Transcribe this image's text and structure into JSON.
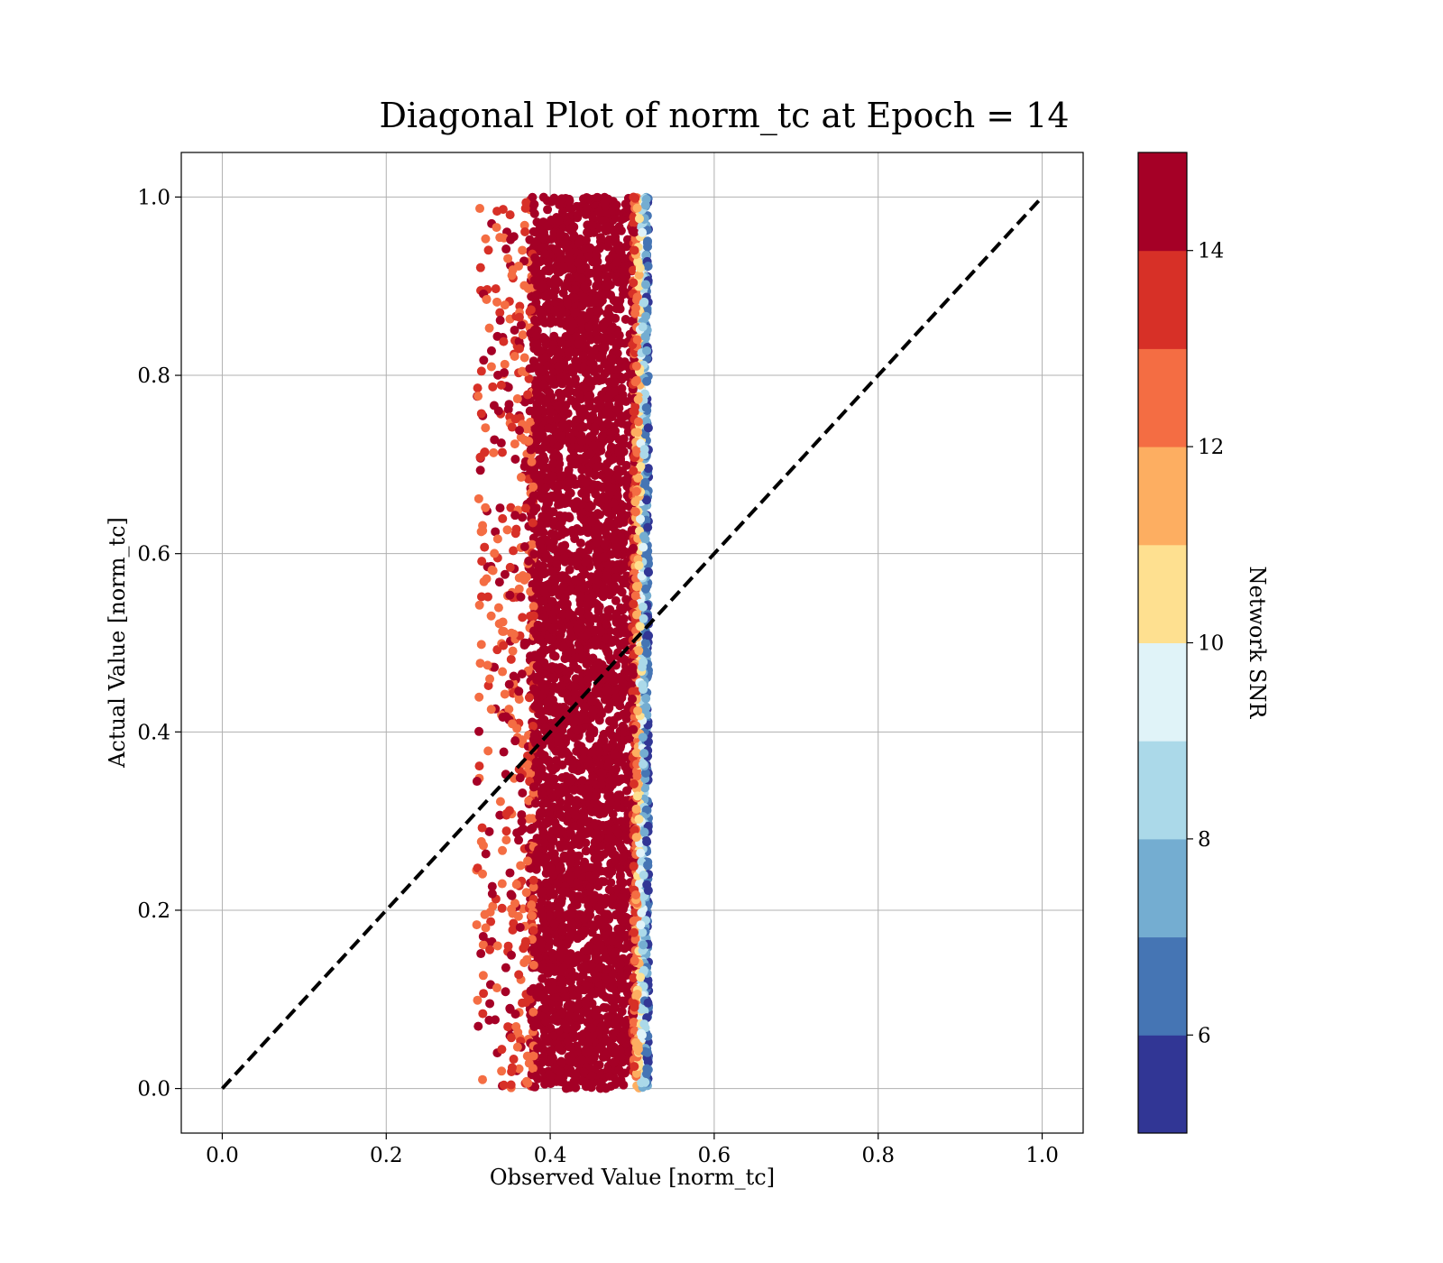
{
  "chart_data": {
    "type": "scatter",
    "title": "Diagonal Plot of norm_tc at Epoch = 14",
    "xlabel": "Observed Value [norm_tc]",
    "ylabel": "Actual Value [norm_tc]",
    "xlim": [
      -0.05,
      1.05
    ],
    "ylim": [
      -0.05,
      1.05
    ],
    "xticks": [
      "0.0",
      "0.2",
      "0.4",
      "0.6",
      "0.8",
      "1.0"
    ],
    "yticks": [
      "0.0",
      "0.2",
      "0.4",
      "0.6",
      "0.8",
      "1.0"
    ],
    "grid": true,
    "reference_line": {
      "style": "dashed",
      "color": "#000000",
      "x": [
        0.0,
        1.0
      ],
      "y": [
        0.0,
        1.0
      ]
    },
    "points": {
      "x_range": [
        0.31,
        0.52
      ],
      "dense_x_range": [
        0.36,
        0.51
      ],
      "y_range": [
        0.0,
        1.0
      ],
      "color_variable": "Network SNR",
      "snr_range": [
        5,
        15
      ]
    },
    "colorbar": {
      "label": "Network SNR",
      "range": [
        5,
        15
      ],
      "ticks": [
        "6",
        "8",
        "10",
        "12",
        "14"
      ],
      "colors": [
        "#313695",
        "#4575b4",
        "#74add1",
        "#abd9e9",
        "#e0f3f8",
        "#fee090",
        "#fdae61",
        "#f46d43",
        "#d73027",
        "#a50026"
      ]
    }
  }
}
